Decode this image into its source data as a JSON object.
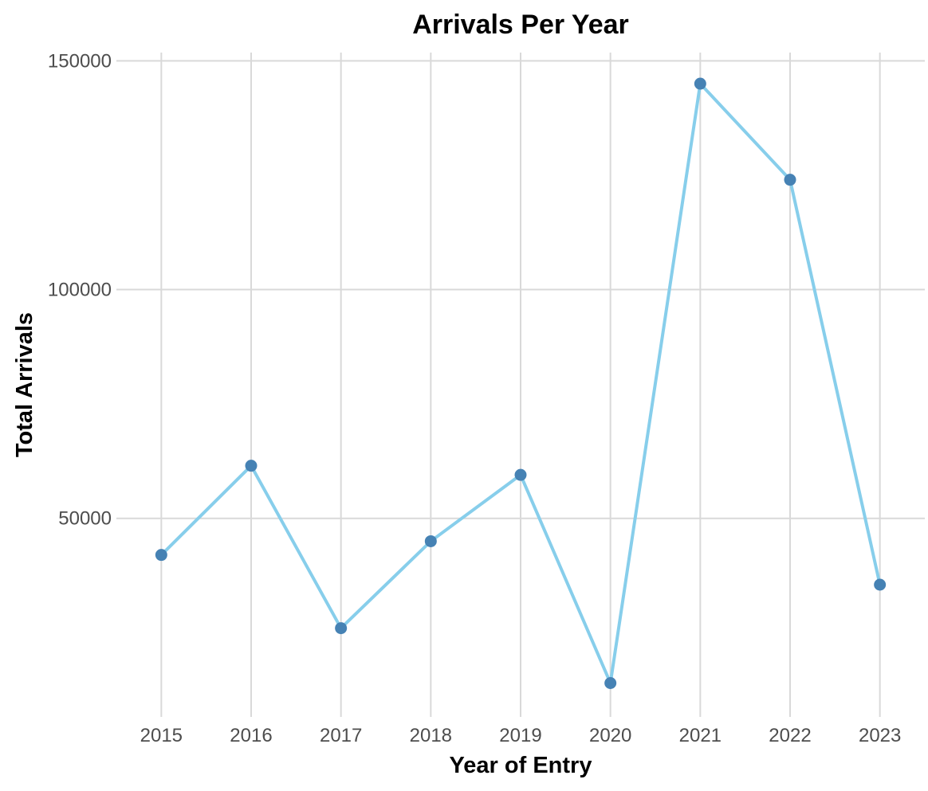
{
  "chart_data": {
    "type": "line",
    "title": "Arrivals Per Year",
    "xlabel": "Year of Entry",
    "ylabel": "Total Arrivals",
    "x": [
      2015,
      2016,
      2017,
      2018,
      2019,
      2020,
      2021,
      2022,
      2023
    ],
    "series": [
      {
        "values": [
          42000,
          61500,
          26000,
          45000,
          59500,
          14000,
          145000,
          124000,
          35500
        ]
      }
    ],
    "x_ticks": [
      "2015",
      "2016",
      "2017",
      "2018",
      "2019",
      "2020",
      "2021",
      "2022",
      "2023"
    ],
    "y_ticks": [
      50000,
      100000,
      150000
    ],
    "y_tick_labels": [
      "50000",
      "100000",
      "150000"
    ],
    "xlim": [
      2014.5,
      2023.5
    ],
    "ylim": [
      6600,
      151800
    ],
    "grid": true,
    "legend": "none",
    "colors": {
      "line": "#87ceeb",
      "point": "#4682b4",
      "grid": "#d9d9d9",
      "tick_text": "#4d4d4d"
    }
  }
}
